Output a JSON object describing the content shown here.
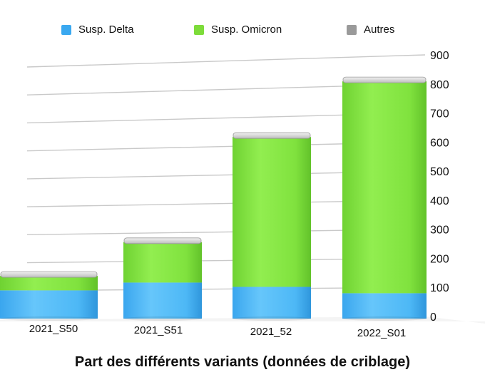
{
  "chart_data": {
    "type": "bar",
    "stacked": true,
    "title": "Part des différents variants (données de criblage)",
    "categories": [
      "2021_S50",
      "2021_S51",
      "2021_52",
      "2022_S01"
    ],
    "series": [
      {
        "name": "Susp. Delta",
        "color": "#4fb8f5",
        "values": [
          98,
          125,
          110,
          88
        ]
      },
      {
        "name": "Susp. Omicron",
        "color": "#80e63c",
        "values": [
          50,
          140,
          520,
          735
        ]
      },
      {
        "name": "Autres",
        "color": "#9a9a9a",
        "values": [
          0,
          0,
          0,
          0
        ]
      }
    ],
    "ylim": [
      0,
      900
    ],
    "yticks": [
      "0",
      "100",
      "200",
      "300",
      "400",
      "500",
      "600",
      "700",
      "800",
      "900"
    ],
    "legend_position": "top",
    "grid": true
  }
}
